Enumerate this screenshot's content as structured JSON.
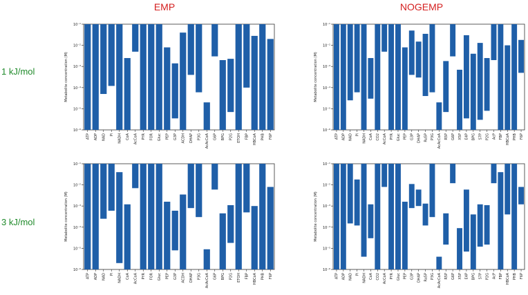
{
  "figure": {
    "col_titles": [
      "EMP",
      "NOGEMP"
    ],
    "row_labels": [
      "1 kJ/mol",
      "3 kJ/mol"
    ]
  },
  "colors": {
    "bar": "#1f5fa8",
    "title": "#d41f1f",
    "row_label": "#1f8a2a"
  },
  "chart_data": [
    {
      "type": "bar",
      "title": "EMP",
      "row_label": "1 kJ/mol",
      "ylabel": "Metabolite concentration (M)",
      "yscale": "log",
      "ylim": [
        1e-06,
        0.1
      ],
      "yticks": [
        "10⁻⁶",
        "10⁻⁵",
        "10⁻⁴",
        "10⁻³",
        "10⁻²",
        "10⁻¹"
      ],
      "categories": [
        "ATP",
        "ADP",
        "NAD",
        "Pi",
        "NADH",
        "CoA",
        "AcCoA",
        "PYR",
        "FOR",
        "Gluc",
        "PEP",
        "G3P",
        "ACDH",
        "DHAP",
        "P3G",
        "AcAcCoA",
        "G6P",
        "BPG",
        "P2G",
        "ETOH",
        "FBP",
        "HBCoA",
        "PHB",
        "F6P"
      ],
      "low": [
        1e-06,
        1e-06,
        5e-05,
        0.00012,
        1e-06,
        1e-06,
        0.005,
        1e-06,
        1e-06,
        1e-06,
        1e-06,
        3.5e-06,
        1e-06,
        0.0004,
        6e-05,
        1e-06,
        0.003,
        1e-06,
        7e-06,
        1e-06,
        0.0001,
        1e-06,
        1e-06,
        1e-06
      ],
      "high": [
        0.1,
        0.1,
        0.1,
        0.1,
        0.1,
        0.0025,
        0.1,
        0.1,
        0.1,
        0.1,
        0.008,
        0.0014,
        0.04,
        0.1,
        0.1,
        2e-05,
        0.1,
        0.002,
        0.0023,
        0.1,
        0.1,
        0.028,
        0.1,
        0.02
      ]
    },
    {
      "type": "bar",
      "title": "NOGEMP",
      "row_label": "1 kJ/mol",
      "ylabel": "Metabolite concentration (M)",
      "yscale": "log",
      "ylim": [
        1e-06,
        0.1
      ],
      "yticks": [
        "10⁻⁶",
        "10⁻⁵",
        "10⁻⁴",
        "10⁻³",
        "10⁻²",
        "10⁻¹"
      ],
      "categories": [
        "ATP",
        "ADP",
        "NAD",
        "Pi",
        "NADH",
        "CoA",
        "CO2",
        "AcCoA",
        "PYR",
        "Gluc",
        "PEP",
        "G3P",
        "DHAP",
        "Ru5P",
        "P3G",
        "AcAcCoA",
        "R5P",
        "G6P",
        "X5P",
        "E4P",
        "BPG",
        "S7P",
        "P2G",
        "AcP",
        "FBP",
        "HBCoA",
        "PHB",
        "F6P"
      ],
      "low": [
        1e-06,
        1e-06,
        2.5e-05,
        6e-05,
        1e-06,
        3e-05,
        1e-06,
        0.005,
        1e-06,
        1e-06,
        1e-06,
        0.0004,
        0.0003,
        4e-05,
        6e-05,
        1e-06,
        7e-06,
        0.003,
        1e-06,
        3.5e-06,
        1e-06,
        3e-06,
        8e-06,
        0.002,
        1e-06,
        1e-06,
        1e-06,
        0.0005
      ],
      "high": [
        0.1,
        0.1,
        0.1,
        0.1,
        0.1,
        0.0025,
        0.1,
        0.1,
        0.1,
        0.1,
        0.008,
        0.05,
        0.015,
        0.035,
        0.1,
        2e-05,
        0.0018,
        0.1,
        0.0007,
        0.03,
        0.004,
        0.013,
        0.0025,
        0.1,
        0.1,
        0.01,
        0.1,
        0.018
      ]
    },
    {
      "type": "bar",
      "title": "EMP",
      "row_label": "3 kJ/mol",
      "ylabel": "Metabolite concentration (M)",
      "yscale": "log",
      "ylim": [
        1e-06,
        0.1
      ],
      "yticks": [
        "10⁻⁶",
        "10⁻⁵",
        "10⁻⁴",
        "10⁻³",
        "10⁻²",
        "10⁻¹"
      ],
      "categories": [
        "ATP",
        "ADP",
        "NAD",
        "Pi",
        "NADH",
        "CoA",
        "AcCoA",
        "PYR",
        "FOR",
        "Gluc",
        "PEP",
        "G3P",
        "ACDH",
        "DHAP",
        "P3G",
        "AcAcCoA",
        "G6P",
        "BPG",
        "P2G",
        "ETOH",
        "FBP",
        "HBCoA",
        "PHB",
        "F6P"
      ],
      "low": [
        1e-06,
        1e-06,
        0.00025,
        0.0006,
        2e-06,
        1e-06,
        0.007,
        1e-06,
        1e-06,
        1e-06,
        1e-06,
        8e-06,
        1e-06,
        0.0008,
        0.0003,
        1e-06,
        0.006,
        1e-06,
        1.8e-05,
        1e-06,
        0.0005,
        1e-06,
        1e-06,
        1e-06
      ],
      "high": [
        0.1,
        0.1,
        0.1,
        0.1,
        0.04,
        0.0012,
        0.1,
        0.1,
        0.1,
        0.1,
        0.0016,
        0.0006,
        0.0035,
        0.1,
        0.1,
        9e-06,
        0.1,
        0.00045,
        0.0011,
        0.1,
        0.1,
        0.001,
        0.1,
        0.008
      ]
    },
    {
      "type": "bar",
      "title": "NOGEMP",
      "row_label": "3 kJ/mol",
      "ylabel": "Metabolite concentration (M)",
      "yscale": "log",
      "ylim": [
        1e-06,
        0.1
      ],
      "yticks": [
        "10⁻⁶",
        "10⁻⁵",
        "10⁻⁴",
        "10⁻³",
        "10⁻²",
        "10⁻¹"
      ],
      "categories": [
        "ATP",
        "ADP",
        "NAD",
        "Pi",
        "NADH",
        "CoA",
        "CO2",
        "AcCoA",
        "PYR",
        "Gluc",
        "PEP",
        "G3P",
        "DHAP",
        "Ru5P",
        "P3G",
        "AcAcCoA",
        "R5P",
        "G6P",
        "X5P",
        "E4P",
        "BPG",
        "S7P",
        "P2G",
        "AcP",
        "FBP",
        "HBCoA",
        "PHB",
        "F6P"
      ],
      "low": [
        1e-06,
        1e-06,
        0.00015,
        0.00012,
        4e-06,
        3e-05,
        1e-06,
        0.008,
        1e-06,
        1e-06,
        1e-06,
        0.0008,
        0.001,
        0.00012,
        0.0003,
        1e-06,
        1.5e-05,
        0.012,
        1e-06,
        7e-06,
        1e-06,
        1.2e-05,
        1.5e-05,
        0.012,
        1e-06,
        0.0004,
        1e-06,
        0.0012
      ],
      "high": [
        0.1,
        0.1,
        0.1,
        0.018,
        0.1,
        0.0012,
        0.1,
        0.1,
        0.1,
        0.1,
        0.0016,
        0.011,
        0.006,
        0.0013,
        0.1,
        4e-06,
        0.00045,
        0.1,
        9e-05,
        0.006,
        0.0004,
        0.0012,
        0.0011,
        0.1,
        0.04,
        0.1,
        0.1,
        0.008
      ]
    }
  ]
}
